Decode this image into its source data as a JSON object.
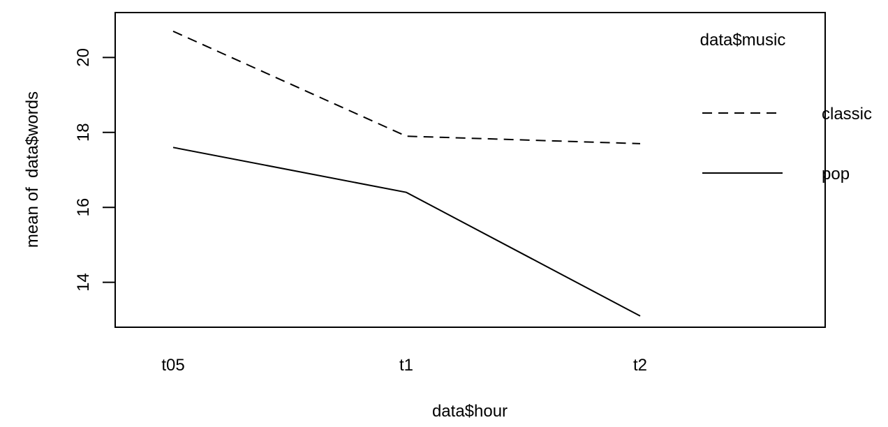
{
  "chart_data": {
    "type": "line",
    "xlabel": "data$hour",
    "ylabel": "mean of  data$words",
    "categories": [
      "t05",
      "t1",
      "t2"
    ],
    "ylim": [
      12.8,
      21.2
    ],
    "yticks": [
      14,
      16,
      18,
      20
    ],
    "ytick_labels": [
      "14",
      "16",
      "18",
      "20"
    ],
    "legend": {
      "title": "data$music",
      "placement": "right"
    },
    "series": [
      {
        "name": "classic",
        "line_style": "dashed",
        "values": [
          20.7,
          17.9,
          17.7
        ]
      },
      {
        "name": "pop",
        "line_style": "solid",
        "values": [
          17.6,
          16.4,
          13.1
        ]
      }
    ],
    "grid": false,
    "colors": {
      "line": "#000000",
      "background": "#ffffff"
    }
  }
}
